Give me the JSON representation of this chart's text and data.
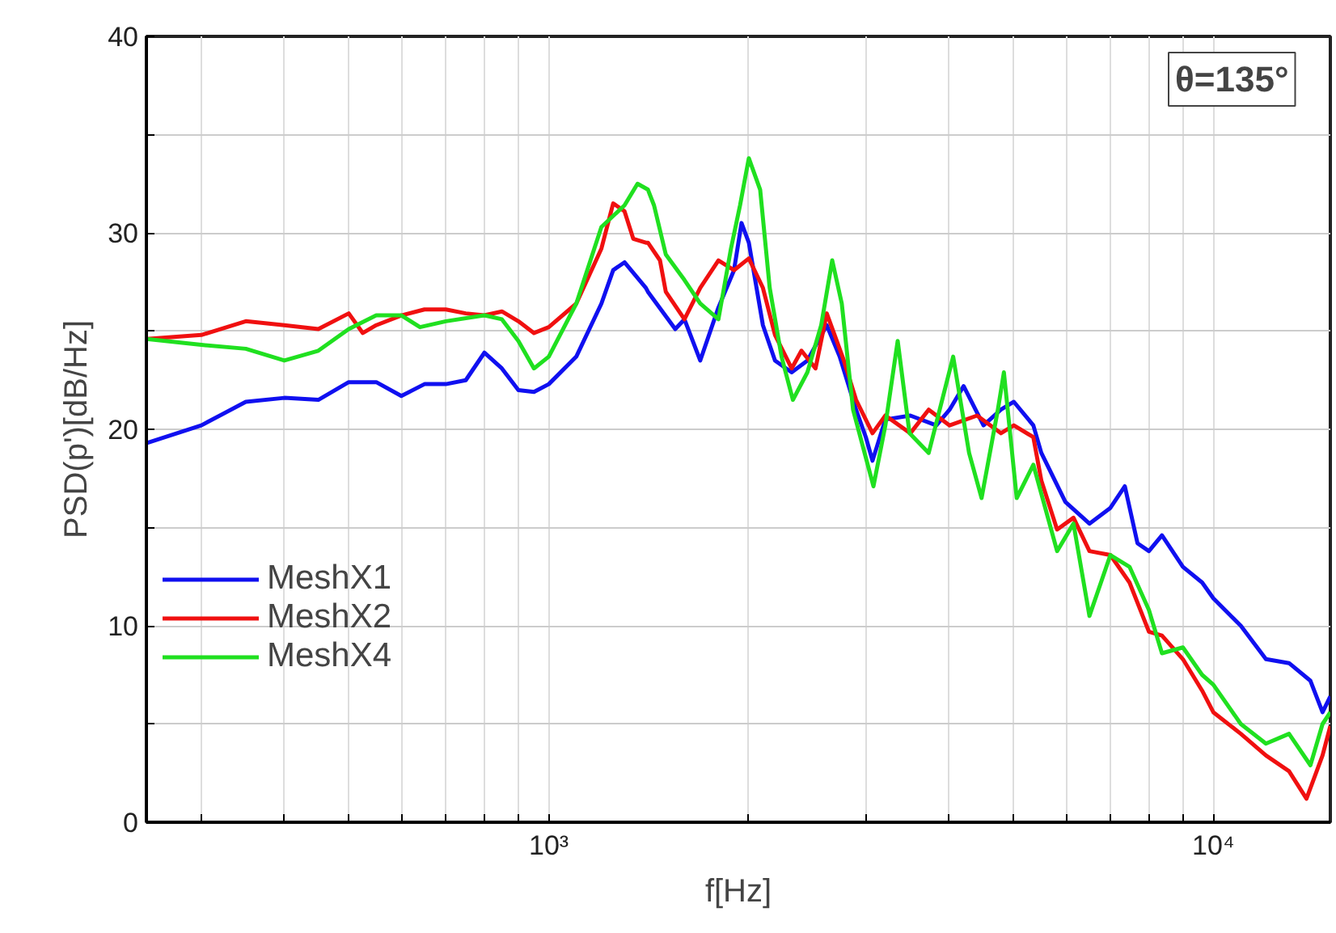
{
  "chart_data": {
    "type": "line",
    "xlabel": "f[Hz]",
    "ylabel": "PSD(p')[dB/Hz]",
    "log": "x",
    "xlim": [
      248,
      15000
    ],
    "ylim": [
      0,
      40
    ],
    "xticks": [
      {
        "value": 300,
        "label": null
      },
      {
        "value": 400,
        "label": null
      },
      {
        "value": 500,
        "label": null
      },
      {
        "value": 600,
        "label": null
      },
      {
        "value": 700,
        "label": null
      },
      {
        "value": 800,
        "label": null
      },
      {
        "value": 900,
        "label": null
      },
      {
        "value": 1000,
        "label": "10³"
      },
      {
        "value": 2000,
        "label": null
      },
      {
        "value": 3000,
        "label": null
      },
      {
        "value": 4000,
        "label": null
      },
      {
        "value": 5000,
        "label": null
      },
      {
        "value": 6000,
        "label": null
      },
      {
        "value": 7000,
        "label": null
      },
      {
        "value": 8000,
        "label": null
      },
      {
        "value": 9000,
        "label": null
      },
      {
        "value": 10000,
        "label": "10⁴"
      }
    ],
    "yticks": [
      0,
      {
        "value": 5,
        "label": null
      },
      10,
      {
        "value": 15,
        "label": null
      },
      20,
      {
        "value": 25,
        "label": null
      },
      30,
      {
        "value": 35,
        "label": null
      },
      40
    ],
    "grid": true,
    "legend": "left",
    "line_style": "solid",
    "annotations": [
      "θ=135°"
    ],
    "series": [
      {
        "name": "MeshX1",
        "color": "#1010f0",
        "x": [
          248,
          300,
          350,
          400,
          450,
          500,
          550,
          600,
          650,
          700,
          750,
          800,
          850,
          900,
          950,
          1000,
          1100,
          1200,
          1250,
          1300,
          1400,
          1410,
          1550,
          1600,
          1690,
          1800,
          1900,
          1950,
          2000,
          2100,
          2190,
          2320,
          2450,
          2620,
          2740,
          2900,
          3000,
          3070,
          3210,
          3500,
          3830,
          4010,
          4210,
          4510,
          4790,
          5010,
          5360,
          5510,
          5990,
          6510,
          7000,
          7360,
          7690,
          8000,
          8370,
          9000,
          9620,
          10000,
          11000,
          12000,
          13000,
          14000,
          14600,
          15000
        ],
        "values": [
          19.3,
          20.2,
          21.4,
          21.6,
          21.5,
          22.4,
          22.4,
          21.7,
          22.3,
          22.3,
          22.5,
          23.9,
          23.1,
          22.0,
          21.9,
          22.3,
          23.7,
          26.4,
          28.1,
          28.5,
          27.2,
          27.0,
          25.1,
          25.6,
          23.5,
          26.2,
          28.1,
          30.5,
          29.5,
          25.3,
          23.5,
          22.9,
          23.5,
          25.3,
          23.7,
          21.0,
          19.6,
          18.4,
          20.5,
          20.7,
          20.2,
          21.0,
          22.2,
          20.2,
          21.0,
          21.4,
          20.2,
          18.8,
          16.3,
          15.2,
          16.0,
          17.1,
          14.2,
          13.8,
          14.6,
          13.0,
          12.2,
          11.4,
          10.0,
          8.3,
          8.1,
          7.2,
          5.6,
          6.4
        ]
      },
      {
        "name": "MeshX2",
        "color": "#f01010",
        "x": [
          248,
          300,
          350,
          400,
          450,
          500,
          525,
          550,
          600,
          650,
          700,
          750,
          800,
          850,
          900,
          950,
          1000,
          1100,
          1200,
          1250,
          1300,
          1340,
          1400,
          1410,
          1470,
          1500,
          1600,
          1690,
          1800,
          1900,
          2000,
          2100,
          2190,
          2320,
          2400,
          2520,
          2620,
          2780,
          2900,
          3070,
          3210,
          3500,
          3730,
          4010,
          4410,
          4790,
          5010,
          5360,
          5510,
          5820,
          6160,
          6510,
          7000,
          7480,
          8000,
          8370,
          9000,
          9620,
          10000,
          11000,
          12000,
          13000,
          13810,
          14600,
          15000
        ],
        "values": [
          24.6,
          24.8,
          25.5,
          25.3,
          25.1,
          25.9,
          24.9,
          25.3,
          25.8,
          26.1,
          26.1,
          25.9,
          25.8,
          26.0,
          25.5,
          24.9,
          25.2,
          26.4,
          29.2,
          31.5,
          31.1,
          29.7,
          29.5,
          29.5,
          28.6,
          27.0,
          25.6,
          27.2,
          28.6,
          28.1,
          28.7,
          27.2,
          24.8,
          23.1,
          24.0,
          23.1,
          25.9,
          23.5,
          21.5,
          19.8,
          20.7,
          19.8,
          21.0,
          20.2,
          20.7,
          19.8,
          20.2,
          19.6,
          17.4,
          14.9,
          15.5,
          13.8,
          13.6,
          12.2,
          9.7,
          9.5,
          8.3,
          6.7,
          5.6,
          4.5,
          3.4,
          2.6,
          1.2,
          3.4,
          4.9
        ]
      },
      {
        "name": "MeshX4",
        "color": "#20e020",
        "x": [
          248,
          300,
          350,
          400,
          450,
          500,
          550,
          600,
          640,
          700,
          800,
          850,
          900,
          950,
          1000,
          1100,
          1200,
          1300,
          1360,
          1410,
          1440,
          1500,
          1600,
          1690,
          1800,
          1880,
          1940,
          2000,
          2080,
          2150,
          2240,
          2330,
          2450,
          2570,
          2670,
          2760,
          2870,
          3080,
          3210,
          3350,
          3490,
          3730,
          4060,
          4290,
          4480,
          4740,
          4840,
          5060,
          5360,
          5820,
          6160,
          6510,
          7000,
          7480,
          8000,
          8370,
          9000,
          9620,
          10000,
          11000,
          12000,
          13000,
          14000,
          14600,
          15000
        ],
        "values": [
          24.6,
          24.3,
          24.1,
          23.5,
          24.0,
          25.1,
          25.8,
          25.8,
          25.2,
          25.5,
          25.8,
          25.6,
          24.5,
          23.1,
          23.7,
          26.4,
          30.3,
          31.4,
          32.5,
          32.2,
          31.4,
          28.9,
          27.6,
          26.4,
          25.6,
          29.2,
          31.4,
          33.8,
          32.2,
          27.2,
          23.7,
          21.5,
          22.9,
          25.3,
          28.6,
          26.4,
          21.0,
          17.1,
          20.2,
          24.5,
          19.8,
          18.8,
          23.7,
          18.8,
          16.5,
          21.0,
          22.9,
          16.5,
          18.2,
          13.8,
          15.2,
          10.5,
          13.6,
          13.0,
          10.8,
          8.6,
          8.9,
          7.5,
          7.0,
          5.0,
          4.0,
          4.5,
          2.9,
          5.0,
          5.6
        ]
      }
    ]
  }
}
